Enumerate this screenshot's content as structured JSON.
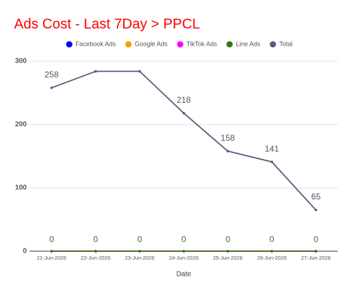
{
  "chart_data": {
    "type": "line",
    "title": "Ads Cost - Last 7Day > PPCL",
    "x_label": "Date",
    "categories": [
      "21-Jun-2026",
      "22-Jun-2026",
      "23-Jun-2026",
      "24-Jun-2026",
      "25-Jun-2026",
      "26-Jun-2026",
      "27-Jun-2026"
    ],
    "series": [
      {
        "name": "Facebook Ads",
        "color": "#0000ff",
        "values": [
          0,
          0,
          0,
          0,
          0,
          0,
          0
        ],
        "value_labels": [
          null,
          null,
          null,
          null,
          null,
          null,
          null
        ]
      },
      {
        "name": "Google Ads",
        "color": "#ff9900",
        "values": [
          0,
          0,
          0,
          0,
          0,
          0,
          0
        ],
        "value_labels": [
          null,
          null,
          null,
          null,
          null,
          null,
          null
        ]
      },
      {
        "name": "TikTok Ads",
        "color": "#ff00ff",
        "values": [
          0,
          0,
          0,
          0,
          0,
          0,
          0
        ],
        "value_labels": [
          null,
          null,
          null,
          null,
          null,
          null,
          null
        ]
      },
      {
        "name": "Line Ads",
        "color": "#38761d",
        "values": [
          0,
          0,
          0,
          0,
          0,
          0,
          0
        ]
      },
      {
        "name": "Total",
        "color": "#5b5b7e",
        "values": [
          258,
          284,
          284,
          218,
          158,
          141,
          65
        ],
        "value_labels": [
          "258",
          null,
          null,
          "218",
          "158",
          "141",
          "65"
        ]
      }
    ],
    "ylim": [
      0,
      300
    ],
    "yticks": [
      0,
      100,
      200,
      300
    ],
    "grid": true
  }
}
